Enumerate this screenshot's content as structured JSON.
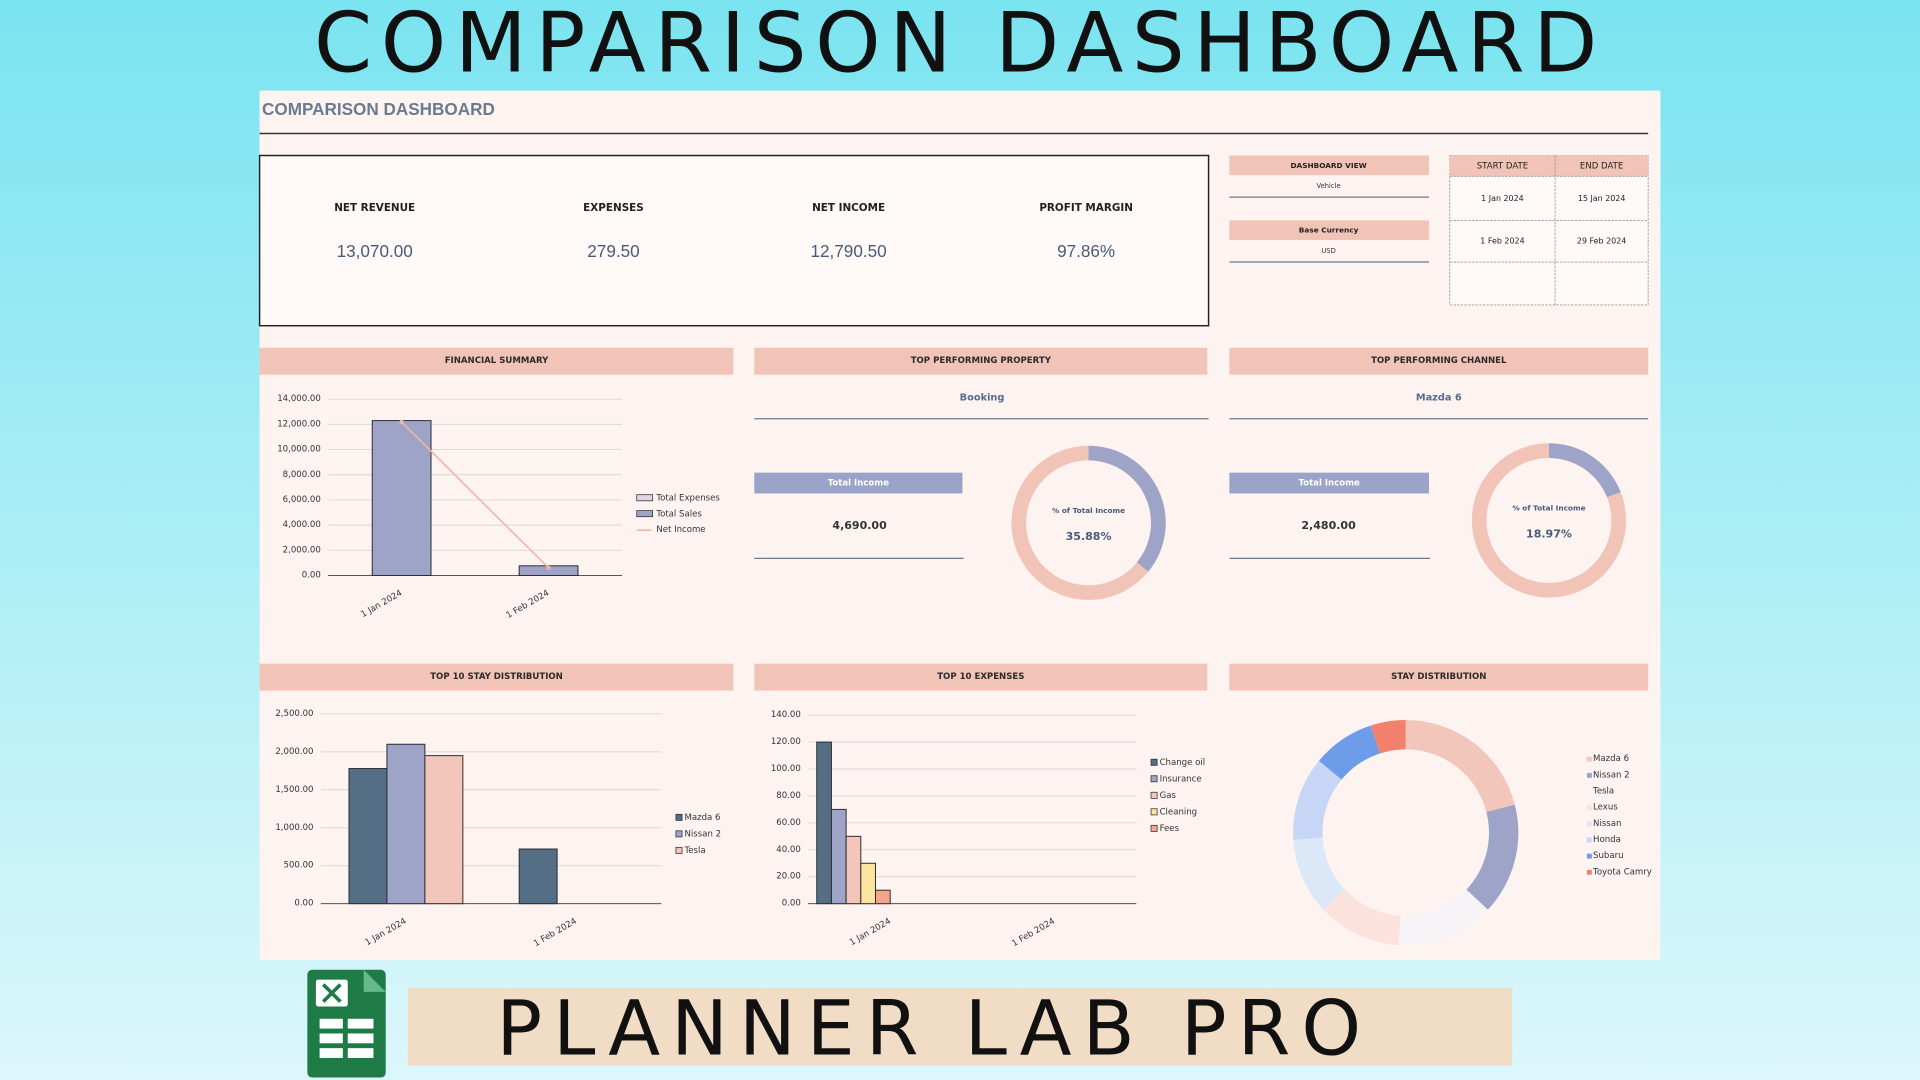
{
  "banner_title": "COMPARISON DASHBOARD",
  "sheet_title": "COMPARISON DASHBOARD",
  "kpis": [
    {
      "label": "NET REVENUE",
      "value": "13,070.00"
    },
    {
      "label": "EXPENSES",
      "value": "279.50"
    },
    {
      "label": "NET INCOME",
      "value": "12,790.50"
    },
    {
      "label": "PROFIT MARGIN",
      "value": "97.86%"
    }
  ],
  "settings": [
    {
      "label": "DASHBOARD VIEW",
      "value": "Vehicle"
    },
    {
      "label": "Base Currency",
      "value": "USD"
    }
  ],
  "date_table": {
    "headers": [
      "START DATE",
      "END DATE"
    ],
    "rows": [
      [
        "1 Jan 2024",
        "15 Jan 2024"
      ],
      [
        "1 Feb 2024",
        "29 Feb 2024"
      ]
    ]
  },
  "panels": [
    {
      "title": "TOP PERFORMING PROPERTY",
      "name": "Booking",
      "income_label": "Total Income",
      "income": "4,690.00"
    },
    {
      "title": "TOP PERFORMING CHANNEL",
      "name": "Mazda 6",
      "income_label": "Total Income",
      "income": "2,480.00"
    }
  ],
  "brand": "PLANNER LAB PRO",
  "chart_data": [
    {
      "type": "bar",
      "title": "FINANCIAL SUMMARY",
      "categories": [
        "1 Jan 2024",
        "1 Feb 2024"
      ],
      "series": [
        {
          "name": "Total Expenses",
          "color": "#d9d6e8",
          "values": [
            120,
            160
          ]
        },
        {
          "name": "Total Sales",
          "color": "#9ea3c8",
          "values": [
            12300,
            770
          ]
        },
        {
          "name": "Net Income",
          "color": "#f2b4a2",
          "type": "line",
          "values": [
            12180,
            610
          ]
        }
      ],
      "ylim": [
        0,
        14000
      ],
      "yticks": [
        {
          "value": 0,
          "label": "0.00"
        },
        {
          "value": 2000,
          "label": "2,000.00"
        },
        {
          "value": 4000,
          "label": "4,000.00"
        },
        {
          "value": 6000,
          "label": "6,000.00"
        },
        {
          "value": 8000,
          "label": "8,000.00"
        },
        {
          "value": 10000,
          "label": "10,000.00"
        },
        {
          "value": 12000,
          "label": "12,000.00"
        },
        {
          "value": 14000,
          "label": "14,000.00"
        }
      ],
      "grid": true
    },
    {
      "type": "donut",
      "title": "% of Total Income",
      "values": [
        35.88
      ],
      "value_labels": [
        "35.88%"
      ],
      "color": "#9ea3c8"
    },
    {
      "type": "donut",
      "title": "% of Total Income",
      "values": [
        18.97
      ],
      "value_labels": [
        "18.97%"
      ],
      "color": "#9ea3c8"
    },
    {
      "type": "bar",
      "title": "TOP 10 STAY DISTRIBUTION",
      "categories": [
        "1 Jan 2024",
        "1 Feb 2024"
      ],
      "series": [
        {
          "name": "Mazda 6",
          "color": "#546e85",
          "values": [
            1780,
            720
          ]
        },
        {
          "name": "Nissan 2",
          "color": "#9ea3c8",
          "values": [
            2100,
            null
          ]
        },
        {
          "name": "Tesla",
          "color": "#f2c6ba",
          "values": [
            1950,
            null
          ]
        }
      ],
      "ylim": [
        0,
        2500
      ],
      "yticks": [
        {
          "value": 0,
          "label": "0.00"
        },
        {
          "value": 500,
          "label": "500.00"
        },
        {
          "value": 1000,
          "label": "1,000.00"
        },
        {
          "value": 1500,
          "label": "1,500.00"
        },
        {
          "value": 2000,
          "label": "2,000.00"
        },
        {
          "value": 2500,
          "label": "2,500.00"
        }
      ],
      "grid": true
    },
    {
      "type": "bar",
      "title": "TOP 10 EXPENSES",
      "categories": [
        "1 Jan 2024",
        "1 Feb 2024"
      ],
      "series": [
        {
          "name": "Change oil",
          "color": "#546e85",
          "values": [
            120,
            null
          ]
        },
        {
          "name": "Insurance",
          "color": "#9ea3c8",
          "values": [
            70,
            null
          ]
        },
        {
          "name": "Gas",
          "color": "#f2c6ba",
          "values": [
            50,
            null
          ]
        },
        {
          "name": "Cleaning",
          "color": "#fbe3a0",
          "values": [
            30,
            null
          ]
        },
        {
          "name": "Fees",
          "color": "#f4a58a",
          "values": [
            10,
            null
          ]
        }
      ],
      "ylim": [
        0,
        140
      ],
      "yticks": [
        {
          "value": 0,
          "label": "0.00"
        },
        {
          "value": 20,
          "label": "20.00"
        },
        {
          "value": 40,
          "label": "40.00"
        },
        {
          "value": 60,
          "label": "60.00"
        },
        {
          "value": 80,
          "label": "80.00"
        },
        {
          "value": 100,
          "label": "100.00"
        },
        {
          "value": 120,
          "label": "120.00"
        },
        {
          "value": 140,
          "label": "140.00"
        }
      ],
      "grid": true
    },
    {
      "type": "donut",
      "title": "STAY DISTRIBUTION",
      "categories": [
        "Mazda 6",
        "Nissan 2",
        "Tesla",
        "Lexus",
        "Nissan",
        "Honda",
        "Subaru",
        "Toyota Camry"
      ],
      "values": [
        21,
        16,
        14,
        12,
        11,
        12,
        9,
        5
      ],
      "colors": [
        "#f2c6ba",
        "#9ea3c8",
        "#f7f4f8",
        "#fbe2dc",
        "#dce8f8",
        "#c7d6f5",
        "#6d9ce8",
        "#f2806c"
      ]
    }
  ]
}
